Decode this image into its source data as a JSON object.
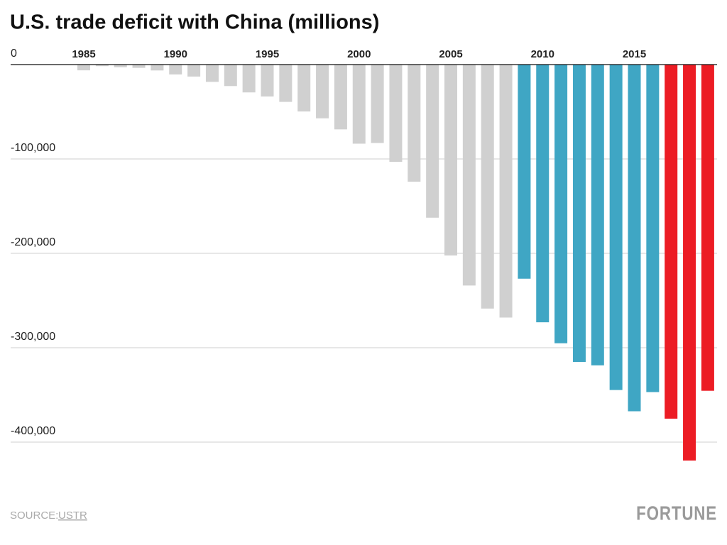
{
  "chart_data": {
    "type": "bar",
    "title": "U.S. trade deficit with China (millions)",
    "categories": [
      "1985",
      null,
      null,
      null,
      null,
      "1990",
      null,
      null,
      null,
      null,
      "1995",
      null,
      null,
      null,
      null,
      "2000",
      null,
      null,
      null,
      null,
      "2005",
      null,
      null,
      null,
      null,
      "2010",
      null,
      null,
      null,
      null,
      "2015",
      null,
      null,
      null,
      null
    ],
    "values": [
      -6096,
      -1665,
      -2796,
      -3489,
      -6234,
      -10431,
      -12691,
      -18309,
      -22777,
      -29505,
      -33790,
      -39520,
      -49696,
      -56927,
      -68677,
      -83833,
      -83096,
      -103065,
      -124068,
      -162254,
      -202278,
      -234101,
      -258506,
      -268040,
      -226877,
      -273042,
      -295250,
      -315102,
      -318684,
      -344818,
      -367328,
      -346997,
      -375168,
      -419527,
      -345617
    ],
    "colors": [
      "#d0d0d0",
      "#d0d0d0",
      "#d0d0d0",
      "#d0d0d0",
      "#d0d0d0",
      "#d0d0d0",
      "#d0d0d0",
      "#d0d0d0",
      "#d0d0d0",
      "#d0d0d0",
      "#d0d0d0",
      "#d0d0d0",
      "#d0d0d0",
      "#d0d0d0",
      "#d0d0d0",
      "#d0d0d0",
      "#d0d0d0",
      "#d0d0d0",
      "#d0d0d0",
      "#d0d0d0",
      "#d0d0d0",
      "#d0d0d0",
      "#d0d0d0",
      "#d0d0d0",
      "#3fa6c4",
      "#3fa6c4",
      "#3fa6c4",
      "#3fa6c4",
      "#3fa6c4",
      "#3fa6c4",
      "#3fa6c4",
      "#3fa6c4",
      "#ec1c24",
      "#ec1c24",
      "#ec1c24"
    ],
    "ylim": [
      -450000,
      0
    ],
    "yticks": [
      0,
      {
        "value": -100000,
        "label": "-100,000"
      },
      {
        "value": -200000,
        "label": "-200,000"
      },
      {
        "value": -300000,
        "label": "-300,000"
      },
      {
        "value": -400000,
        "label": "-400,000"
      }
    ],
    "grid": true,
    "source_label": "SOURCE:",
    "source": "USTR",
    "brand": "FORTUNE"
  }
}
